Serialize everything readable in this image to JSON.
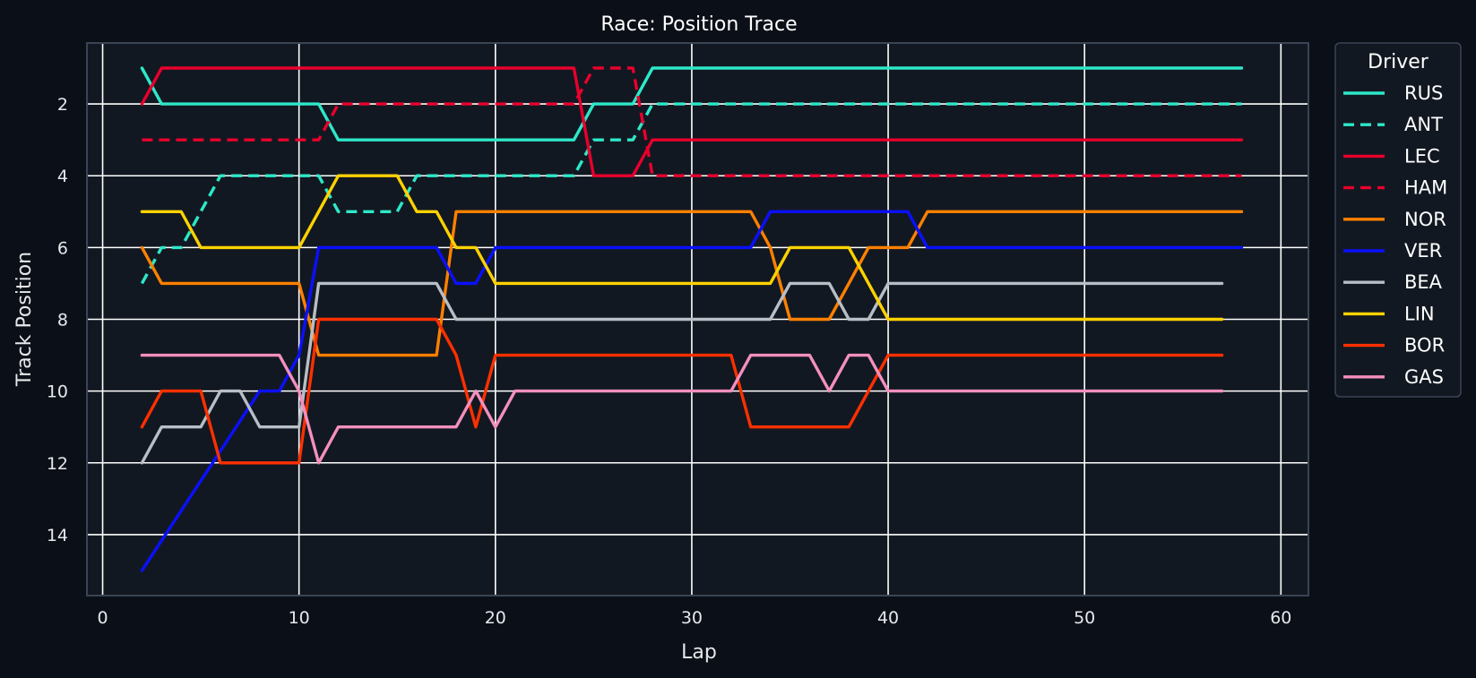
{
  "chart_data": {
    "type": "line",
    "title": "Race: Position Trace",
    "xlabel": "Lap",
    "ylabel": "Track Position",
    "xlim": [
      -0.8,
      61.4
    ],
    "ylim": [
      15.7,
      0.3
    ],
    "y_inverted": true,
    "xticks": [
      0,
      10,
      20,
      30,
      40,
      50,
      60
    ],
    "yticks": [
      2,
      4,
      6,
      8,
      10,
      12,
      14
    ],
    "grid": true,
    "legend": {
      "title": "Driver",
      "placement": "outside-right-top"
    },
    "colors": {
      "background": "#0b0f17",
      "plot_background": "#121821",
      "grid": "#ffffff",
      "spine": "#3a4454"
    },
    "series": [
      {
        "name": "RUS",
        "color": "#2de8c9",
        "dash": false,
        "x": [
          2,
          3,
          11,
          12,
          24,
          25,
          27,
          28,
          58
        ],
        "y": [
          1,
          2,
          2,
          3,
          3,
          2,
          2,
          1,
          1
        ]
      },
      {
        "name": "ANT",
        "color": "#2de8c9",
        "dash": true,
        "x": [
          2,
          3,
          4,
          6,
          11,
          12,
          15,
          16,
          24,
          25,
          27,
          28,
          58
        ],
        "y": [
          7,
          6,
          6,
          4,
          4,
          5,
          5,
          4,
          4,
          3,
          3,
          2,
          2
        ]
      },
      {
        "name": "LEC",
        "color": "#e8002d",
        "dash": false,
        "x": [
          2,
          3,
          24,
          25,
          27,
          28,
          58
        ],
        "y": [
          2,
          1,
          1,
          4,
          4,
          3,
          3
        ]
      },
      {
        "name": "HAM",
        "color": "#e8002d",
        "dash": true,
        "x": [
          2,
          11,
          12,
          24,
          25,
          27,
          28,
          58
        ],
        "y": [
          3,
          3,
          2,
          2,
          1,
          1,
          4,
          4
        ]
      },
      {
        "name": "NOR",
        "color": "#ff8000",
        "dash": false,
        "x": [
          2,
          3,
          10,
          11,
          17,
          18,
          33,
          34,
          35,
          37,
          39,
          40,
          41,
          42,
          58
        ],
        "y": [
          6,
          7,
          7,
          9,
          9,
          5,
          5,
          6,
          8,
          8,
          6,
          6,
          6,
          5,
          5
        ]
      },
      {
        "name": "VER",
        "color": "#0a10ff",
        "dash": false,
        "x": [
          2,
          8,
          9,
          10,
          11,
          17,
          18,
          19,
          20,
          33,
          34,
          41,
          42,
          58
        ],
        "y": [
          15,
          10,
          10,
          9,
          6,
          6,
          7,
          7,
          6,
          6,
          5,
          5,
          6,
          6
        ]
      },
      {
        "name": "BEA",
        "color": "#b8bec6",
        "dash": false,
        "x": [
          2,
          3,
          5,
          6,
          7,
          8,
          10,
          11,
          17,
          18,
          34,
          35,
          37,
          38,
          39,
          40,
          57
        ],
        "y": [
          12,
          11,
          11,
          10,
          10,
          11,
          11,
          7,
          7,
          8,
          8,
          7,
          7,
          8,
          8,
          7,
          7
        ]
      },
      {
        "name": "LIN",
        "color": "#ffd200",
        "dash": false,
        "x": [
          2,
          4,
          5,
          10,
          12,
          15,
          16,
          17,
          18,
          19,
          20,
          34,
          35,
          38,
          40,
          57
        ],
        "y": [
          5,
          5,
          6,
          6,
          4,
          4,
          5,
          5,
          6,
          6,
          7,
          7,
          6,
          6,
          8,
          8
        ]
      },
      {
        "name": "BOR",
        "color": "#ff3000",
        "dash": false,
        "x": [
          2,
          3,
          5,
          6,
          10,
          11,
          17,
          18,
          19,
          20,
          32,
          33,
          38,
          39,
          40,
          57
        ],
        "y": [
          11,
          10,
          10,
          12,
          12,
          8,
          8,
          9,
          11,
          9,
          9,
          11,
          11,
          10,
          9,
          9
        ]
      },
      {
        "name": "GAS",
        "color": "#f48fbe",
        "dash": false,
        "x": [
          2,
          9,
          10,
          11,
          12,
          18,
          19,
          20,
          21,
          32,
          33,
          36,
          37,
          38,
          39,
          40,
          57
        ],
        "y": [
          9,
          9,
          10,
          12,
          11,
          11,
          10,
          11,
          10,
          10,
          9,
          9,
          10,
          9,
          9,
          10,
          10
        ]
      }
    ]
  }
}
